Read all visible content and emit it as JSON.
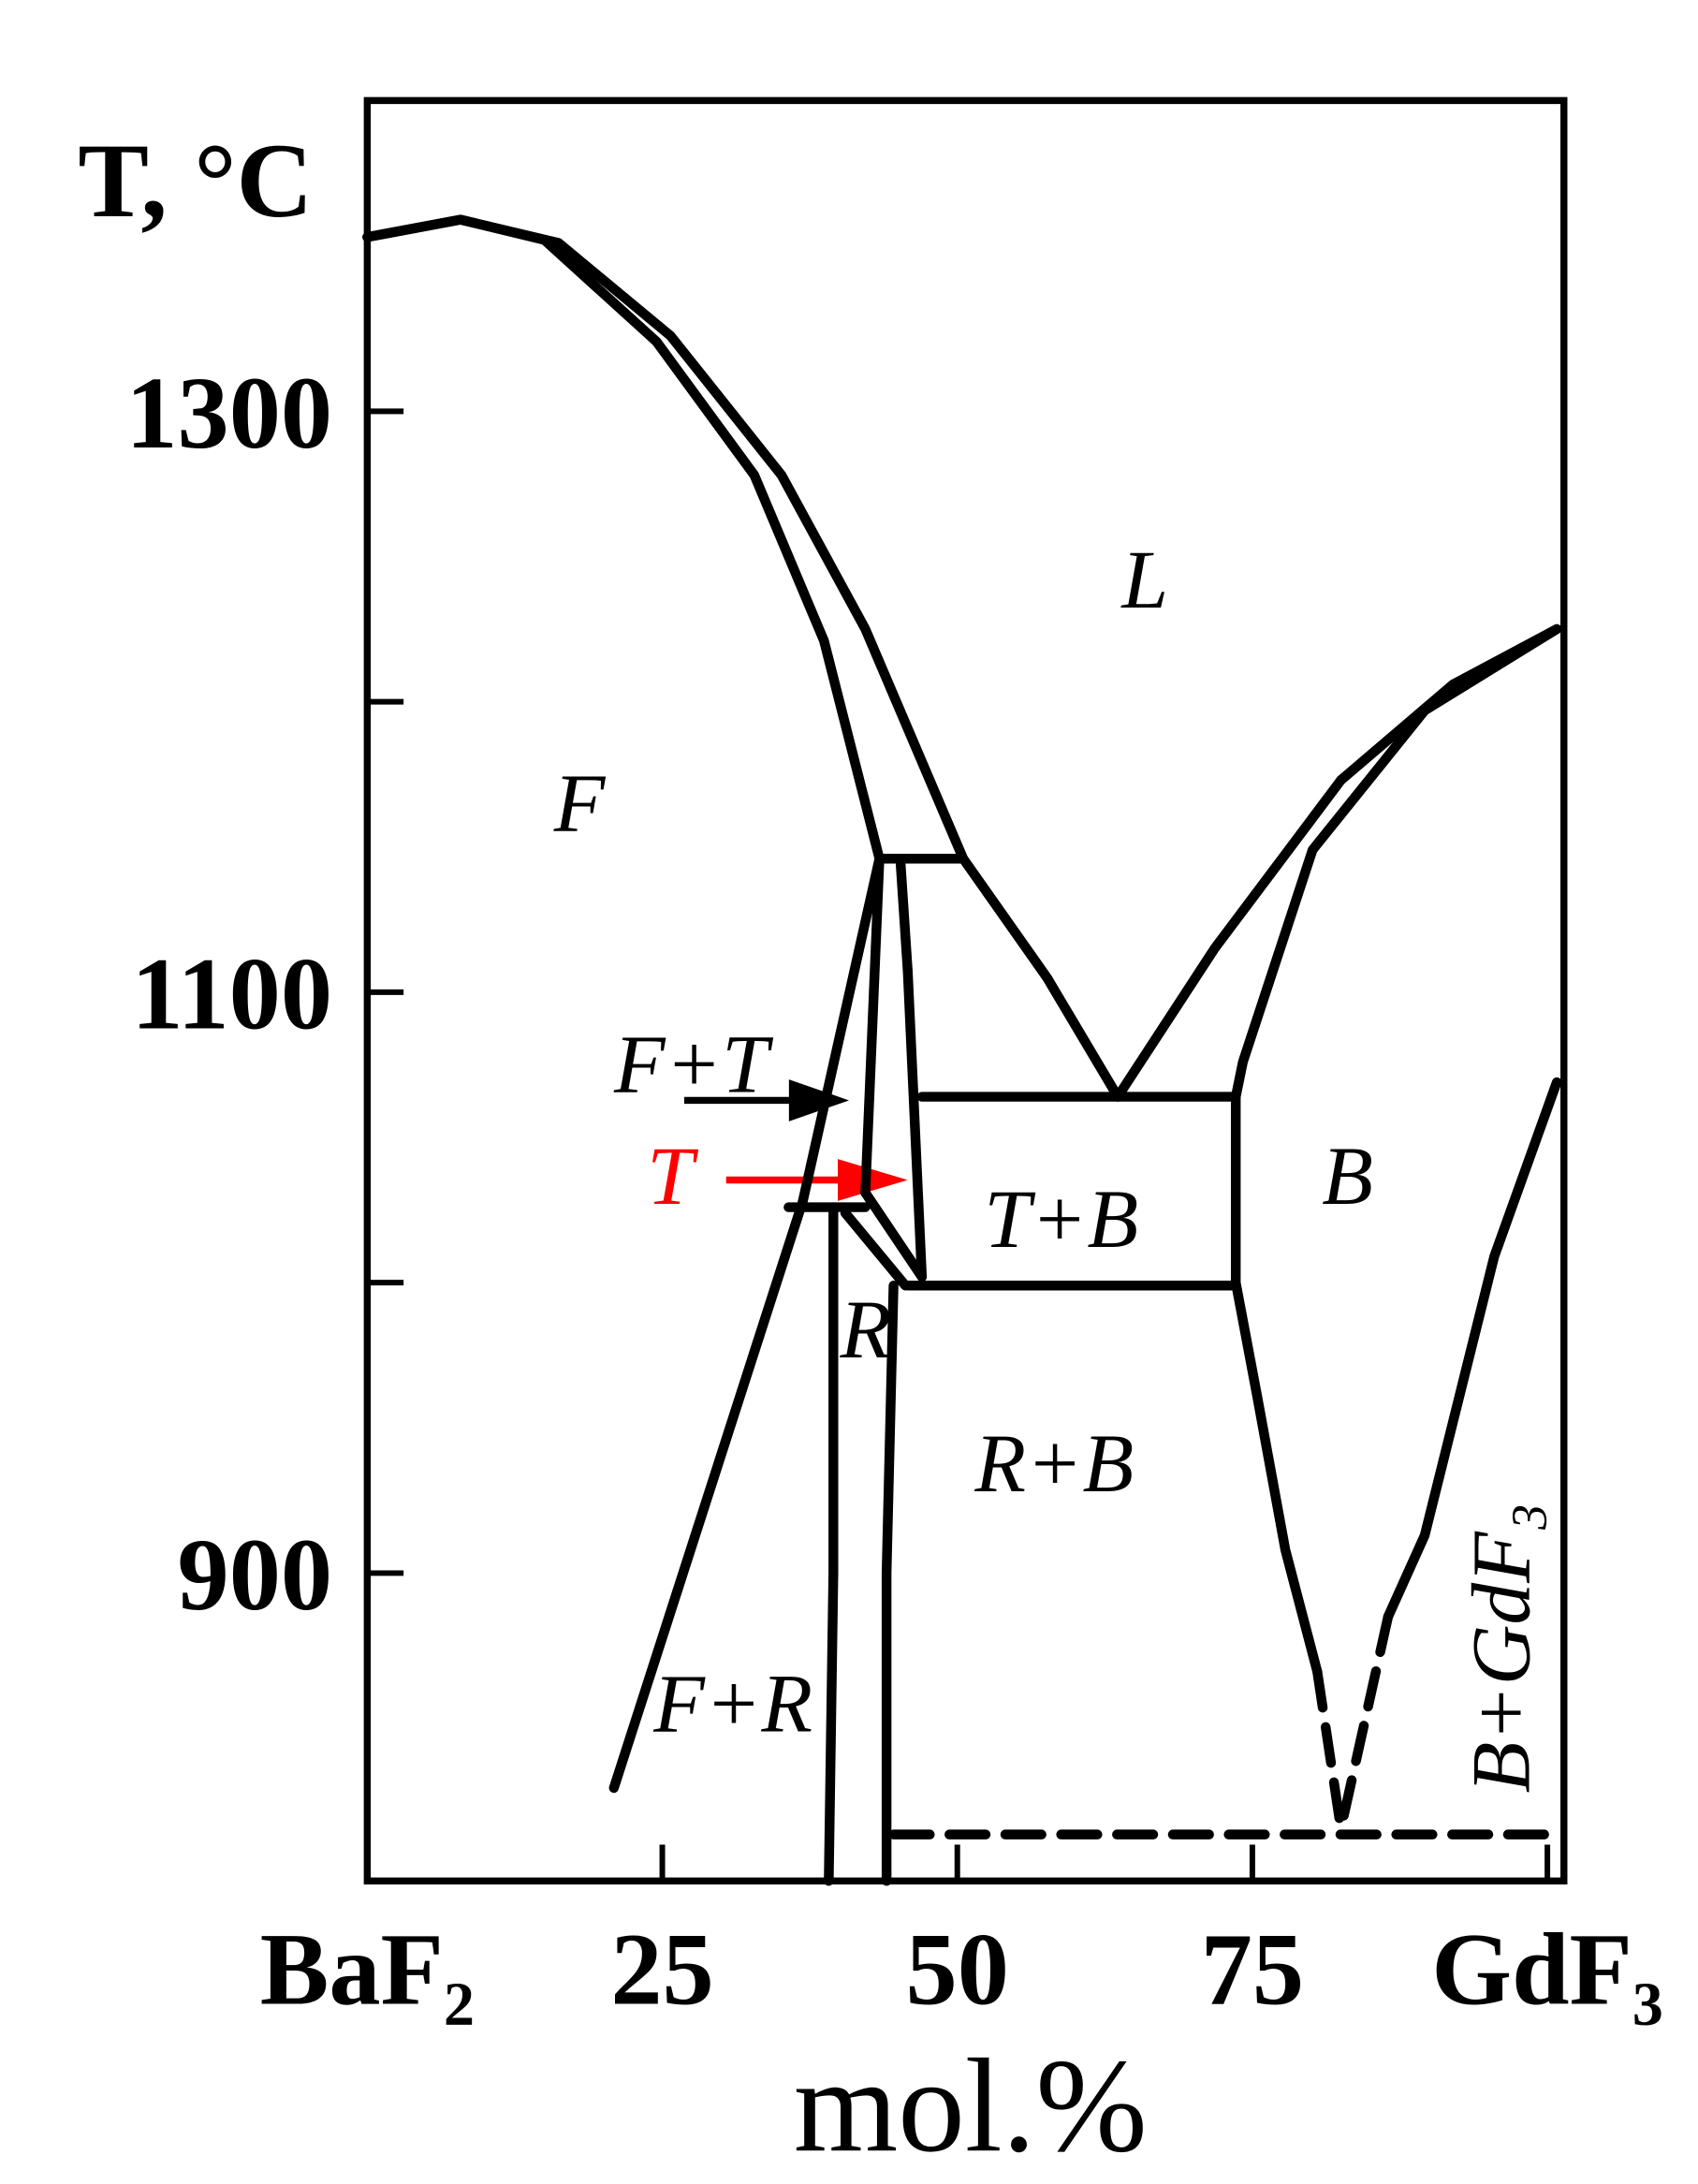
{
  "chart_data": {
    "type": "phase-diagram",
    "y_label": "T, °C",
    "x_label": "mol.%",
    "xlim": [
      0,
      101.4
    ],
    "ylim": [
      794,
      1407
    ],
    "xticks": [
      {
        "value": 0,
        "label": "BaF₂"
      },
      25,
      50,
      75,
      {
        "value": 100,
        "label": "GdF₃"
      }
    ],
    "yticks": [
      900,
      1100,
      1300
    ],
    "yminorticks": [
      1000,
      1200
    ],
    "line_color": "#000000",
    "boundaries": [
      {
        "x": [
          0,
          7.9,
          16.2,
          25.7,
          35.1,
          42.2,
          50.5
        ],
        "y": [
          1360,
          1366,
          1358,
          1326,
          1278,
          1225,
          1146
        ]
      },
      {
        "x": [
          0,
          7.9,
          15.0,
          24.5,
          32.8,
          38.7,
          43.4
        ],
        "y": [
          1360,
          1366,
          1359,
          1324,
          1278,
          1221,
          1146
        ]
      },
      {
        "x": [
          43.4,
          50.5
        ],
        "y": [
          1146,
          1146
        ]
      },
      {
        "x": [
          50.5,
          57.6,
          63.6
        ],
        "y": [
          1146,
          1105,
          1064
        ]
      },
      {
        "x": [
          63.6,
          71.8,
          82.5,
          92,
          100.8
        ],
        "y": [
          1064,
          1115,
          1173,
          1206,
          1225
        ]
      },
      {
        "x": [
          100.8,
          89.6,
          80.1,
          74.2,
          73.6
        ],
        "y": [
          1225,
          1197,
          1149,
          1076,
          1064
        ]
      },
      {
        "x": [
          47,
          73.6
        ],
        "y": [
          1064,
          1064
        ]
      },
      {
        "x": [
          73.6,
          73.6,
          75.4,
          77.8,
          80.5
        ],
        "y": [
          1064,
          1000,
          961,
          908,
          866
        ]
      },
      {
        "x": [
          80.5,
          82.5
        ],
        "y": [
          866,
          812
        ],
        "dashed": true
      },
      {
        "x": [
          100.8,
          95.5,
          89.6,
          86.5
        ],
        "y": [
          1069,
          1009,
          913,
          885
        ]
      },
      {
        "x": [
          86.5,
          82.5
        ],
        "y": [
          885,
          812
        ],
        "dashed": true
      },
      {
        "x": [
          44.6,
          100.8
        ],
        "y": [
          810,
          810
        ],
        "dashed": true
      },
      {
        "x": [
          45.8,
          73.6
        ],
        "y": [
          999,
          999
        ]
      },
      {
        "x": [
          43.4,
          42.2
        ],
        "y": [
          1146,
          1031
        ]
      },
      {
        "x": [
          45.2,
          45.8,
          47
        ],
        "y": [
          1144,
          1107,
          1002
        ]
      },
      {
        "x": [
          43.4,
          36.9,
          20.9
        ],
        "y": [
          1146,
          1028,
          826
        ]
      },
      {
        "x": [
          35.7,
          42.2
        ],
        "y": [
          1026,
          1026
        ]
      },
      {
        "x": [
          39.5,
          39.5,
          39.1
        ],
        "y": [
          1026,
          900,
          794
        ]
      },
      {
        "x": [
          44.6,
          44.0,
          44.0
        ],
        "y": [
          999,
          900,
          794
        ]
      },
      {
        "x": [
          40.5,
          45.6
        ],
        "y": [
          1024,
          999
        ]
      },
      {
        "x": [
          42.2,
          47
        ],
        "y": [
          1031,
          1002
        ]
      }
    ],
    "annotations": [
      {
        "text": "L"
      },
      {
        "text": "F"
      },
      {
        "text": "F+T"
      },
      {
        "text": "T",
        "color": "#ff0000"
      },
      {
        "text": "T+B"
      },
      {
        "text": "B"
      },
      {
        "text": "R"
      },
      {
        "text": "R+B"
      },
      {
        "text": "F+R"
      },
      {
        "text": "B+GdF₃"
      }
    ]
  }
}
